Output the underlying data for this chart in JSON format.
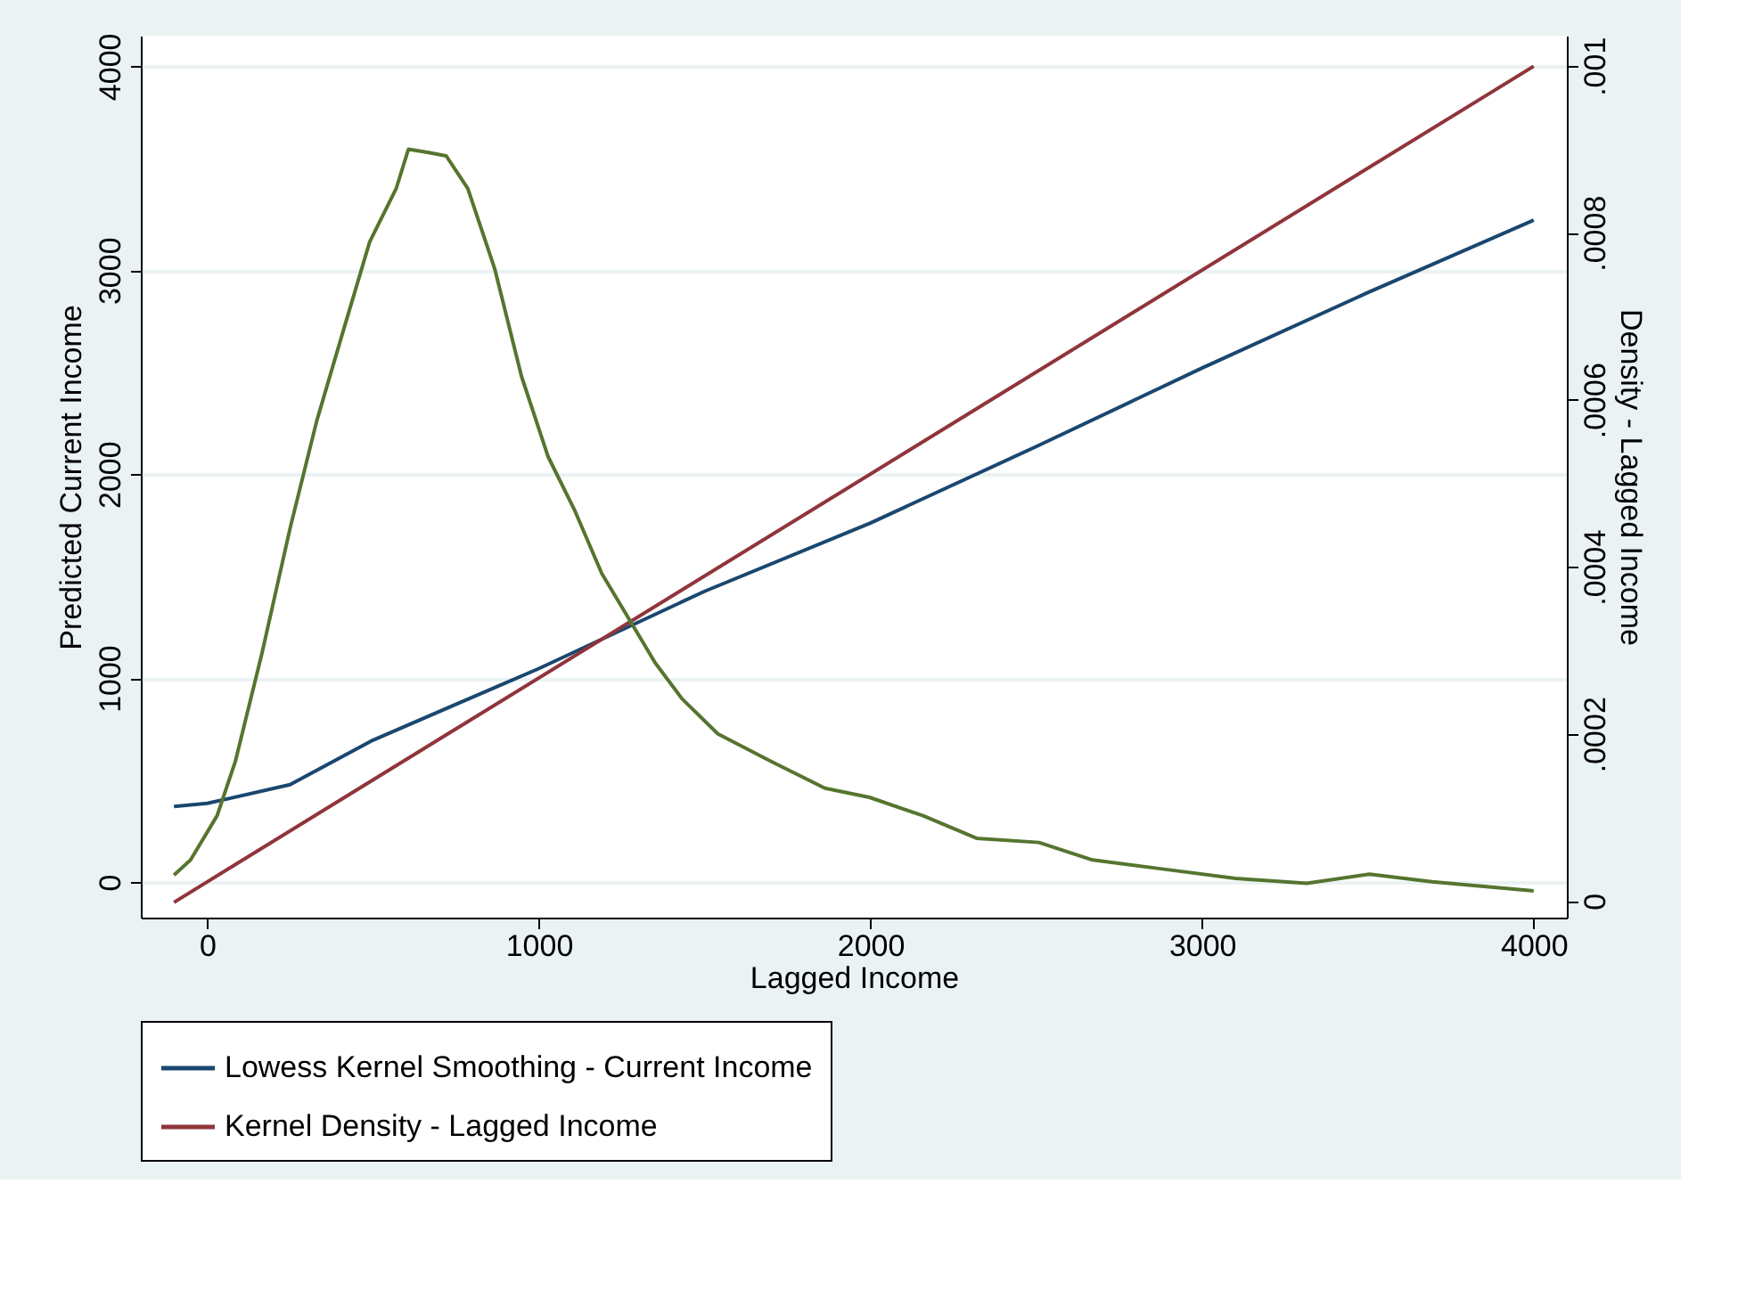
{
  "chart_data": {
    "type": "line",
    "xlabel": "Lagged Income",
    "ylabel": "Predicted Current Income",
    "y2label": "Density - Lagged Income",
    "xlim": [
      -200,
      4100
    ],
    "xticks": [
      0,
      1000,
      2000,
      3000,
      4000
    ],
    "ylim": [
      -175,
      4150
    ],
    "yticks": [
      0,
      1000,
      2000,
      3000,
      4000
    ],
    "y2lim": [
      -2e-05,
      0.001036
    ],
    "y2ticks": [
      {
        "value": 0,
        "label": "0"
      },
      {
        "value": 0.0002,
        "label": ".0002"
      },
      {
        "value": 0.0004,
        "label": ".0004"
      },
      {
        "value": 0.0006,
        "label": ".0006"
      },
      {
        "value": 0.0008,
        "label": ".0008"
      },
      {
        "value": 0.001,
        "label": ".001"
      }
    ],
    "grid": "y",
    "legend": "bottom",
    "series": [
      {
        "name": "Lowess Kernel Smoothing - Current Income",
        "color": "#1a476f",
        "x": [
          -100,
          0,
          250,
          500,
          750,
          1000,
          1500,
          2000,
          2500,
          3000,
          3500,
          4000
        ],
        "values": [
          370,
          385,
          477,
          695,
          871,
          1046,
          1425,
          1760,
          2135,
          2520,
          2890,
          3245
        ]
      },
      {
        "name": "Kernel Density - Lagged Income",
        "color": "#90353b",
        "x": [
          -100,
          4000
        ],
        "values": [
          -100,
          4000
        ]
      },
      {
        "color": "#55752f",
        "axis": "y2",
        "x": [
          -100,
          -50,
          30,
          85,
          165,
          250,
          330,
          410,
          490,
          570,
          607,
          668,
          721,
          786,
          867,
          948,
          1028,
          1109,
          1190,
          1270,
          1351,
          1432,
          1540,
          1701,
          1863,
          1997,
          2159,
          2320,
          2508,
          2670,
          2885,
          3101,
          3316,
          3505,
          3693,
          4000
        ],
        "values": [
          3.1e-05,
          4.9e-05,
          0.000102,
          0.000167,
          0.000296,
          0.000446,
          0.000574,
          0.000682,
          0.000789,
          0.000853,
          0.0009,
          0.000896,
          0.000892,
          0.000853,
          0.000757,
          0.000628,
          0.000532,
          0.000467,
          0.000392,
          0.000339,
          0.000285,
          0.000242,
          0.0002,
          0.000167,
          0.000135,
          0.000124,
          0.000102,
          7.5e-05,
          7e-05,
          4.9e-05,
          3.8e-05,
          2.7e-05,
          2.1e-05,
          3.2e-05,
          2.3e-05,
          1.2e-05
        ]
      }
    ]
  }
}
